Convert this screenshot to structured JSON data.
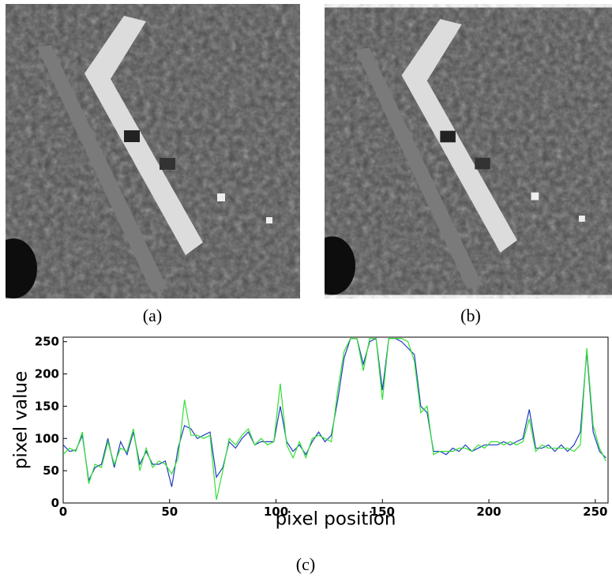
{
  "captions": {
    "a": "(a)",
    "b": "(b)",
    "c": "(c)"
  },
  "chart_data": {
    "type": "line",
    "xlabel": "pixel position",
    "ylabel": "pixel value",
    "xlim": [
      0,
      256
    ],
    "ylim": [
      0,
      257
    ],
    "xticks": [
      0,
      50,
      100,
      150,
      200,
      250
    ],
    "yticks": [
      0,
      50,
      100,
      150,
      200,
      250
    ],
    "x": [
      0,
      3,
      6,
      9,
      12,
      15,
      18,
      21,
      24,
      27,
      30,
      33,
      36,
      39,
      42,
      45,
      48,
      51,
      54,
      57,
      60,
      63,
      66,
      69,
      72,
      75,
      78,
      81,
      84,
      87,
      90,
      93,
      96,
      99,
      102,
      105,
      108,
      111,
      114,
      117,
      120,
      123,
      126,
      129,
      132,
      135,
      138,
      141,
      144,
      147,
      150,
      153,
      156,
      159,
      162,
      165,
      168,
      171,
      174,
      177,
      180,
      183,
      186,
      189,
      192,
      195,
      198,
      201,
      204,
      207,
      210,
      213,
      216,
      219,
      222,
      225,
      228,
      231,
      234,
      237,
      240,
      243,
      246,
      249,
      252,
      255
    ],
    "series": [
      {
        "color": "#1f3fbf",
        "values": [
          90,
          80,
          82,
          105,
          35,
          55,
          60,
          100,
          55,
          95,
          75,
          110,
          60,
          80,
          60,
          60,
          65,
          25,
          85,
          120,
          115,
          100,
          105,
          110,
          40,
          55,
          95,
          85,
          100,
          110,
          90,
          95,
          95,
          95,
          150,
          95,
          80,
          90,
          75,
          95,
          110,
          95,
          105,
          160,
          225,
          255,
          255,
          215,
          250,
          255,
          175,
          255,
          255,
          250,
          240,
          230,
          150,
          140,
          80,
          80,
          75,
          85,
          80,
          90,
          80,
          85,
          90,
          90,
          90,
          95,
          90,
          95,
          100,
          145,
          85,
          85,
          90,
          80,
          90,
          80,
          90,
          110,
          235,
          110,
          80,
          70
        ]
      },
      {
        "color": "#33e033",
        "values": [
          75,
          85,
          80,
          110,
          30,
          60,
          55,
          95,
          60,
          85,
          80,
          115,
          50,
          85,
          55,
          65,
          60,
          45,
          70,
          160,
          105,
          105,
          100,
          105,
          5,
          50,
          100,
          90,
          105,
          115,
          90,
          100,
          90,
          95,
          185,
          90,
          70,
          95,
          70,
          100,
          105,
          100,
          95,
          175,
          235,
          255,
          255,
          205,
          255,
          255,
          160,
          255,
          255,
          255,
          250,
          220,
          140,
          150,
          75,
          80,
          80,
          80,
          85,
          85,
          80,
          90,
          85,
          95,
          95,
          90,
          95,
          90,
          95,
          130,
          80,
          90,
          85,
          85,
          85,
          85,
          80,
          90,
          240,
          120,
          85,
          65
        ]
      }
    ]
  }
}
